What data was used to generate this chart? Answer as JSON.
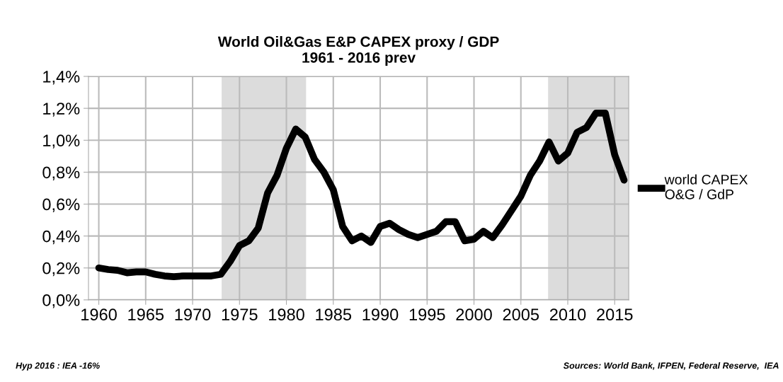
{
  "chart_data": {
    "type": "line",
    "title": "World Oil&Gas E&P CAPEX proxy / GDP\n1961 - 2016 prev",
    "x": [
      1960,
      1961,
      1962,
      1963,
      1964,
      1965,
      1966,
      1967,
      1968,
      1969,
      1970,
      1971,
      1972,
      1973,
      1974,
      1975,
      1976,
      1977,
      1978,
      1979,
      1980,
      1981,
      1982,
      1983,
      1984,
      1985,
      1986,
      1987,
      1988,
      1989,
      1990,
      1991,
      1992,
      1993,
      1994,
      1995,
      1996,
      1997,
      1998,
      1999,
      2000,
      2001,
      2002,
      2003,
      2004,
      2005,
      2006,
      2007,
      2008,
      2009,
      2010,
      2011,
      2012,
      2013,
      2014,
      2015,
      2016
    ],
    "series": [
      {
        "name": "world CAPEX\nO&G / GdP",
        "color": "#000000",
        "values": [
          0.2,
          0.19,
          0.185,
          0.17,
          0.175,
          0.175,
          0.16,
          0.15,
          0.145,
          0.15,
          0.15,
          0.15,
          0.15,
          0.16,
          0.24,
          0.34,
          0.37,
          0.45,
          0.67,
          0.78,
          0.95,
          1.07,
          1.02,
          0.88,
          0.8,
          0.69,
          0.46,
          0.37,
          0.4,
          0.36,
          0.46,
          0.48,
          0.44,
          0.41,
          0.39,
          0.41,
          0.43,
          0.49,
          0.49,
          0.37,
          0.38,
          0.43,
          0.39,
          0.47,
          0.56,
          0.65,
          0.78,
          0.87,
          0.99,
          0.87,
          0.92,
          1.05,
          1.08,
          1.17,
          1.17,
          0.91,
          0.75
        ]
      }
    ],
    "xlim": [
      1958.9,
      2016.5
    ],
    "ylim": [
      0,
      1.4
    ],
    "xticks": [
      1960,
      1965,
      1970,
      1975,
      1980,
      1985,
      1990,
      1995,
      2000,
      2005,
      2010,
      2015
    ],
    "yticks": [
      {
        "value": 0,
        "label": "0,0%"
      },
      {
        "value": 0.2,
        "label": "0,2%"
      },
      {
        "value": 0.4,
        "label": "0,4%"
      },
      {
        "value": 0.6,
        "label": "0,6%"
      },
      {
        "value": 0.8,
        "label": "0,8%"
      },
      {
        "value": 1.0,
        "label": "1,0%"
      },
      {
        "value": 1.2,
        "label": "1,2%"
      },
      {
        "value": 1.4,
        "label": "1,4%"
      }
    ],
    "bands": [
      {
        "axis": "x",
        "from": 1973.1,
        "to": 1982.1,
        "color": "#dcdcdc"
      },
      {
        "axis": "x",
        "from": 2007.9,
        "to": 2016.5,
        "color": "#dcdcdc"
      }
    ],
    "grid": true,
    "legend": "right",
    "line_style": "solid",
    "marker": "none",
    "annotations": [
      "Hyp 2016 : IEA -16%",
      "Sources: World Bank, IFPEN, Federal Reserve,  IEA"
    ]
  }
}
